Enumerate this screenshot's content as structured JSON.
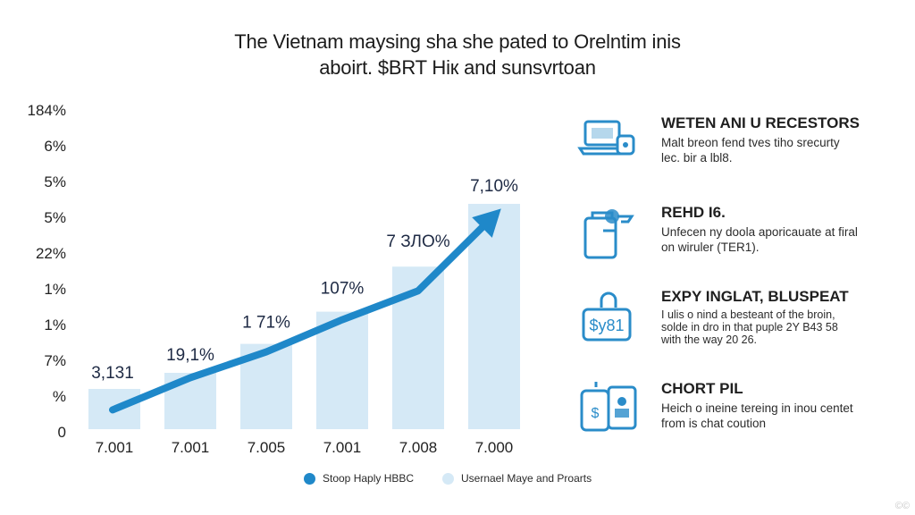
{
  "colors": {
    "bar": "#d5e9f6",
    "arrow": "#1f88c9",
    "icon": "#2a8cc9",
    "text": "#1a1a1a",
    "axis": "#333333"
  },
  "chart_data": {
    "type": "bar",
    "title": "The Vietnam maysing sha she pated to Orelntim inis",
    "subtitle": "aboirt. $BRT Hiк and sunsvrtoan",
    "y_tick_labels": [
      "184%",
      "6%",
      "5%",
      "5%",
      "22%",
      "1%",
      "1%",
      "7%",
      "%",
      "0"
    ],
    "categories": [
      "7.001",
      "7.001",
      "7.005",
      "7.001",
      "7.008",
      "7.000"
    ],
    "values": [
      12.5,
      17.5,
      26.5,
      36.5,
      50.5,
      70.0
    ],
    "ylim": [
      0,
      100
    ],
    "data_labels": [
      "3,131",
      "19,1%",
      "1 71%",
      "107%",
      "7 ЗЛО%",
      "7,10%"
    ],
    "arrow_trend": [
      6,
      16,
      24,
      34,
      43,
      65
    ],
    "legend": [
      {
        "label": "Stoop Haply HBBC",
        "icon": "filled-dot-icon",
        "color": "#1f88c9"
      },
      {
        "label": "Usernael Maye and Proarts",
        "icon": "light-dot-icon",
        "color": "#d5e9f6"
      }
    ]
  },
  "side_panel": {
    "items": [
      {
        "icon": "laptop-lock-icon",
        "title": "WETEN ANI U RECESTORS",
        "lines": [
          "Malt breon fend tves tiho srecurty",
          "lec. bir a lbl8."
        ]
      },
      {
        "icon": "document-key-icon",
        "title": "REHD I6.",
        "lines": [
          "Unfecen ny doola aporicauate at firal",
          "on wiruler (TER1)."
        ]
      },
      {
        "icon": "lock-dollar-icon",
        "title": "EXPY INGLAT, BLUSPEAT",
        "lines": [
          "I ulis o nind a besteant of the broin,",
          "solde in dro in that puple 2Y B43 58",
          "with the way 20 26."
        ]
      },
      {
        "icon": "phone-card-icon",
        "title": "CHORT PIL",
        "lines": [
          "Heich o ineine tereing in inou centet",
          "from is chat coution"
        ]
      }
    ]
  },
  "watermark": "©©"
}
